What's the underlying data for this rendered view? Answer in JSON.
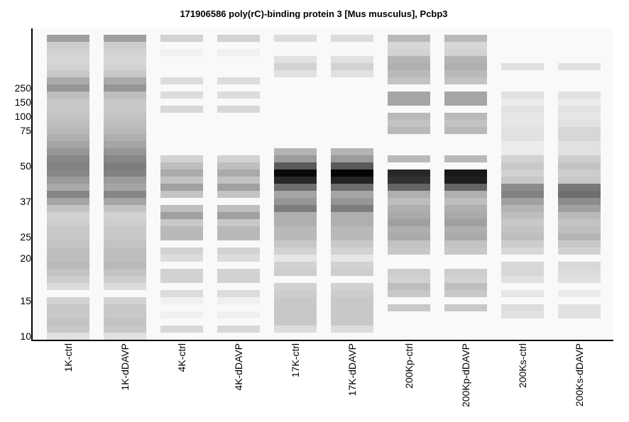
{
  "chart_data": {
    "type": "heatmap",
    "title": "171906586 poly(rC)-binding protein 3 [Mus musculus], Pcbp3",
    "xlabel": "",
    "ylabel": "",
    "y_tick_labels": [
      "250",
      "150",
      "100",
      "75",
      "50",
      "37",
      "25",
      "20",
      "15",
      "10"
    ],
    "y_tick_rows": [
      7,
      9,
      11,
      13,
      18,
      23,
      28,
      31,
      37,
      42
    ],
    "row_count": 43,
    "lanes": [
      "1K-ctrl",
      "1K-dDAVP",
      "4K-ctrl",
      "4K-dDAVP",
      "17K-ctrl",
      "17K-dDAVP",
      "200Kp-ctrl",
      "200Kp-dDAVP",
      "200Ks-ctrl",
      "200Ks-dDAVP"
    ],
    "band_unit": "gray level of each band slice (0 = black, 250 = background)",
    "intensities": [
      [
        160,
        205,
        210,
        215,
        210,
        200,
        170,
        150,
        190,
        200,
        200,
        195,
        190,
        185,
        175,
        165,
        150,
        135,
        130,
        135,
        155,
        170,
        135,
        165,
        195,
        210,
        205,
        200,
        200,
        195,
        190,
        190,
        185,
        195,
        205,
        220,
        250,
        210,
        200,
        200,
        195,
        200,
        225
      ],
      [
        160,
        205,
        210,
        215,
        210,
        200,
        170,
        150,
        190,
        200,
        200,
        195,
        190,
        185,
        175,
        165,
        150,
        135,
        125,
        130,
        155,
        165,
        135,
        165,
        195,
        210,
        205,
        200,
        200,
        195,
        190,
        190,
        185,
        195,
        205,
        220,
        250,
        210,
        200,
        200,
        195,
        200,
        225
      ],
      [
        210,
        250,
        240,
        250,
        250,
        250,
        220,
        250,
        220,
        250,
        215,
        250,
        250,
        250,
        250,
        250,
        250,
        210,
        190,
        170,
        195,
        160,
        195,
        250,
        190,
        160,
        200,
        185,
        185,
        250,
        210,
        220,
        250,
        210,
        210,
        250,
        220,
        240,
        250,
        240,
        250,
        215,
        250
      ],
      [
        210,
        250,
        240,
        250,
        250,
        250,
        220,
        250,
        220,
        250,
        215,
        250,
        250,
        250,
        250,
        250,
        250,
        210,
        190,
        170,
        195,
        160,
        195,
        250,
        190,
        160,
        200,
        185,
        185,
        250,
        210,
        220,
        250,
        210,
        210,
        250,
        220,
        240,
        250,
        240,
        250,
        215,
        250
      ],
      [
        220,
        250,
        250,
        225,
        210,
        225,
        250,
        250,
        250,
        250,
        250,
        250,
        250,
        250,
        250,
        250,
        180,
        155,
        90,
        10,
        40,
        110,
        165,
        150,
        125,
        175,
        175,
        185,
        185,
        200,
        210,
        230,
        210,
        205,
        250,
        210,
        205,
        200,
        200,
        200,
        200,
        220,
        250
      ],
      [
        220,
        250,
        250,
        225,
        210,
        225,
        250,
        250,
        250,
        250,
        250,
        250,
        250,
        250,
        250,
        250,
        180,
        155,
        90,
        5,
        35,
        110,
        165,
        150,
        125,
        175,
        175,
        185,
        185,
        200,
        210,
        230,
        210,
        205,
        250,
        210,
        205,
        200,
        200,
        200,
        200,
        220,
        250
      ],
      [
        185,
        215,
        210,
        180,
        175,
        185,
        195,
        250,
        165,
        165,
        250,
        185,
        195,
        185,
        250,
        250,
        250,
        185,
        250,
        40,
        50,
        100,
        175,
        190,
        175,
        170,
        160,
        175,
        170,
        195,
        200,
        250,
        250,
        205,
        210,
        190,
        200,
        250,
        200,
        250,
        250,
        250,
        250
      ],
      [
        185,
        215,
        210,
        180,
        175,
        185,
        195,
        250,
        165,
        165,
        250,
        185,
        195,
        185,
        250,
        250,
        250,
        185,
        250,
        25,
        30,
        100,
        175,
        190,
        175,
        170,
        160,
        175,
        170,
        195,
        200,
        250,
        250,
        205,
        210,
        190,
        200,
        250,
        200,
        250,
        250,
        250,
        250
      ],
      [
        250,
        250,
        250,
        250,
        225,
        250,
        250,
        250,
        225,
        235,
        225,
        230,
        230,
        225,
        225,
        235,
        235,
        210,
        200,
        210,
        200,
        140,
        130,
        160,
        180,
        190,
        200,
        195,
        190,
        205,
        215,
        250,
        215,
        215,
        225,
        250,
        230,
        250,
        220,
        225,
        250,
        250,
        250
      ],
      [
        250,
        250,
        250,
        250,
        225,
        250,
        250,
        250,
        225,
        235,
        225,
        230,
        225,
        215,
        215,
        225,
        225,
        205,
        195,
        205,
        200,
        120,
        110,
        140,
        160,
        185,
        195,
        190,
        180,
        200,
        210,
        250,
        215,
        220,
        225,
        250,
        235,
        250,
        225,
        225,
        250,
        250,
        250
      ]
    ]
  }
}
